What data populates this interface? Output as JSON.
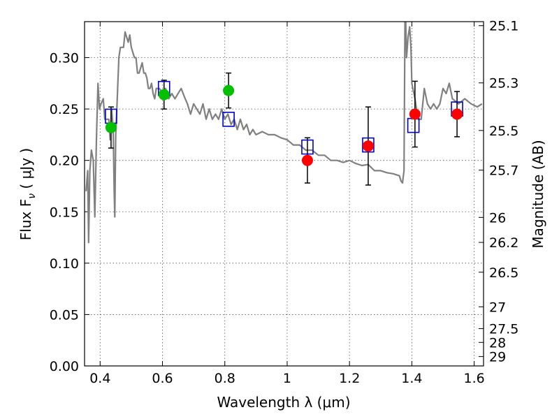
{
  "chart_data": {
    "type": "scatter",
    "xlabel": "Wavelength  λ (μm)",
    "ylabel_left": "Flux  F",
    "ylabel_left_sub": "ν",
    "ylabel_left_unit": "( μJy )",
    "ylabel_right": "Magnitude (AB)",
    "xlim": [
      0.35,
      1.63
    ],
    "ylim": [
      0.0,
      0.335
    ],
    "grid": true,
    "xticks": [
      0.4,
      0.6,
      0.8,
      1.0,
      1.2,
      1.4,
      1.6
    ],
    "xtick_labels": [
      "0.4",
      "0.6",
      "0.8",
      "1",
      "1.2",
      "1.4",
      "1.6"
    ],
    "yticks": [
      0.0,
      0.05,
      0.1,
      0.15,
      0.2,
      0.25,
      0.3
    ],
    "ytick_labels": [
      "0.00",
      "0.05",
      "0.10",
      "0.15",
      "0.20",
      "0.25",
      "0.30"
    ],
    "right_ticks": [
      {
        "label": "25.1",
        "flux": 0.3311
      },
      {
        "label": "25.3",
        "flux": 0.2754
      },
      {
        "label": "25.5",
        "flux": 0.2291
      },
      {
        "label": "25.7",
        "flux": 0.1905
      },
      {
        "label": "26",
        "flux": 0.1445
      },
      {
        "label": "26.2",
        "flux": 0.1202
      },
      {
        "label": "26.5",
        "flux": 0.0912
      },
      {
        "label": "27",
        "flux": 0.0575
      },
      {
        "label": "27.5",
        "flux": 0.0363
      },
      {
        "label": "28",
        "flux": 0.0229
      },
      {
        "label": "29",
        "flux": 0.0091
      }
    ],
    "series": [
      {
        "kind": "line",
        "color": "#808080",
        "points": [
          [
            0.355,
            0.17
          ],
          [
            0.36,
            0.19
          ],
          [
            0.363,
            0.12
          ],
          [
            0.367,
            0.19
          ],
          [
            0.372,
            0.21
          ],
          [
            0.378,
            0.2
          ],
          [
            0.383,
            0.145
          ],
          [
            0.388,
            0.22
          ],
          [
            0.393,
            0.275
          ],
          [
            0.398,
            0.25
          ],
          [
            0.403,
            0.255
          ],
          [
            0.41,
            0.26
          ],
          [
            0.415,
            0.24
          ],
          [
            0.42,
            0.24
          ],
          [
            0.428,
            0.24
          ],
          [
            0.432,
            0.22
          ],
          [
            0.437,
            0.25
          ],
          [
            0.442,
            0.23
          ],
          [
            0.445,
            0.17
          ],
          [
            0.447,
            0.145
          ],
          [
            0.45,
            0.225
          ],
          [
            0.455,
            0.26
          ],
          [
            0.46,
            0.3
          ],
          [
            0.465,
            0.31
          ],
          [
            0.47,
            0.31
          ],
          [
            0.475,
            0.31
          ],
          [
            0.48,
            0.325
          ],
          [
            0.485,
            0.32
          ],
          [
            0.49,
            0.315
          ],
          [
            0.495,
            0.322
          ],
          [
            0.5,
            0.31
          ],
          [
            0.505,
            0.305
          ],
          [
            0.51,
            0.3
          ],
          [
            0.515,
            0.3
          ],
          [
            0.52,
            0.285
          ],
          [
            0.525,
            0.285
          ],
          [
            0.53,
            0.29
          ],
          [
            0.535,
            0.295
          ],
          [
            0.54,
            0.285
          ],
          [
            0.545,
            0.285
          ],
          [
            0.55,
            0.28
          ],
          [
            0.555,
            0.27
          ],
          [
            0.56,
            0.27
          ],
          [
            0.565,
            0.275
          ],
          [
            0.57,
            0.265
          ],
          [
            0.575,
            0.26
          ],
          [
            0.58,
            0.27
          ],
          [
            0.59,
            0.27
          ],
          [
            0.6,
            0.265
          ],
          [
            0.61,
            0.27
          ],
          [
            0.62,
            0.26
          ],
          [
            0.63,
            0.265
          ],
          [
            0.64,
            0.26
          ],
          [
            0.65,
            0.265
          ],
          [
            0.66,
            0.27
          ],
          [
            0.67,
            0.262
          ],
          [
            0.68,
            0.255
          ],
          [
            0.69,
            0.245
          ],
          [
            0.7,
            0.255
          ],
          [
            0.71,
            0.25
          ],
          [
            0.72,
            0.245
          ],
          [
            0.73,
            0.255
          ],
          [
            0.74,
            0.24
          ],
          [
            0.75,
            0.25
          ],
          [
            0.76,
            0.24
          ],
          [
            0.77,
            0.245
          ],
          [
            0.78,
            0.24
          ],
          [
            0.79,
            0.25
          ],
          [
            0.8,
            0.24
          ],
          [
            0.81,
            0.245
          ],
          [
            0.82,
            0.235
          ],
          [
            0.83,
            0.24
          ],
          [
            0.84,
            0.23
          ],
          [
            0.85,
            0.24
          ],
          [
            0.86,
            0.23
          ],
          [
            0.87,
            0.235
          ],
          [
            0.88,
            0.225
          ],
          [
            0.89,
            0.23
          ],
          [
            0.9,
            0.225
          ],
          [
            0.92,
            0.228
          ],
          [
            0.94,
            0.225
          ],
          [
            0.96,
            0.225
          ],
          [
            0.98,
            0.222
          ],
          [
            1.0,
            0.22
          ],
          [
            1.02,
            0.215
          ],
          [
            1.04,
            0.215
          ],
          [
            1.06,
            0.21
          ],
          [
            1.08,
            0.21
          ],
          [
            1.1,
            0.205
          ],
          [
            1.12,
            0.205
          ],
          [
            1.14,
            0.2
          ],
          [
            1.16,
            0.2
          ],
          [
            1.18,
            0.198
          ],
          [
            1.2,
            0.2
          ],
          [
            1.22,
            0.197
          ],
          [
            1.24,
            0.195
          ],
          [
            1.26,
            0.196
          ],
          [
            1.28,
            0.19
          ],
          [
            1.3,
            0.19
          ],
          [
            1.32,
            0.188
          ],
          [
            1.34,
            0.187
          ],
          [
            1.36,
            0.185
          ],
          [
            1.365,
            0.18
          ],
          [
            1.37,
            0.178
          ],
          [
            1.375,
            0.19
          ],
          [
            1.378,
            0.34
          ],
          [
            1.38,
            0.34
          ],
          [
            1.383,
            0.3
          ],
          [
            1.388,
            0.32
          ],
          [
            1.393,
            0.33
          ],
          [
            1.397,
            0.31
          ],
          [
            1.4,
            0.275
          ],
          [
            1.41,
            0.26
          ],
          [
            1.42,
            0.24
          ],
          [
            1.43,
            0.24
          ],
          [
            1.44,
            0.27
          ],
          [
            1.45,
            0.255
          ],
          [
            1.46,
            0.25
          ],
          [
            1.47,
            0.255
          ],
          [
            1.48,
            0.25
          ],
          [
            1.49,
            0.255
          ],
          [
            1.5,
            0.27
          ],
          [
            1.51,
            0.265
          ],
          [
            1.52,
            0.275
          ],
          [
            1.53,
            0.26
          ],
          [
            1.55,
            0.255
          ],
          [
            1.57,
            0.26
          ],
          [
            1.59,
            0.255
          ],
          [
            1.61,
            0.252
          ],
          [
            1.625,
            0.255
          ]
        ]
      },
      {
        "kind": "markers",
        "marker": "circle",
        "color": "#00c000",
        "points": [
          {
            "x": 0.435,
            "y": 0.232,
            "err": 0.02
          },
          {
            "x": 0.605,
            "y": 0.264,
            "err": 0.014
          },
          {
            "x": 0.812,
            "y": 0.268,
            "err": 0.017
          }
        ]
      },
      {
        "kind": "markers",
        "marker": "circle",
        "color": "#ff0000",
        "points": [
          {
            "x": 1.065,
            "y": 0.2,
            "err": 0.022
          },
          {
            "x": 1.26,
            "y": 0.214,
            "err": 0.038
          },
          {
            "x": 1.41,
            "y": 0.245,
            "err": 0.032
          },
          {
            "x": 1.545,
            "y": 0.245,
            "err": 0.022
          }
        ]
      },
      {
        "kind": "markers",
        "marker": "open-square",
        "color": "#0000cc",
        "points": [
          {
            "x": 0.435,
            "y": 0.243
          },
          {
            "x": 0.605,
            "y": 0.27
          },
          {
            "x": 0.812,
            "y": 0.24
          },
          {
            "x": 1.065,
            "y": 0.213
          },
          {
            "x": 1.26,
            "y": 0.215
          },
          {
            "x": 1.405,
            "y": 0.234
          },
          {
            "x": 1.545,
            "y": 0.25
          }
        ]
      }
    ]
  }
}
